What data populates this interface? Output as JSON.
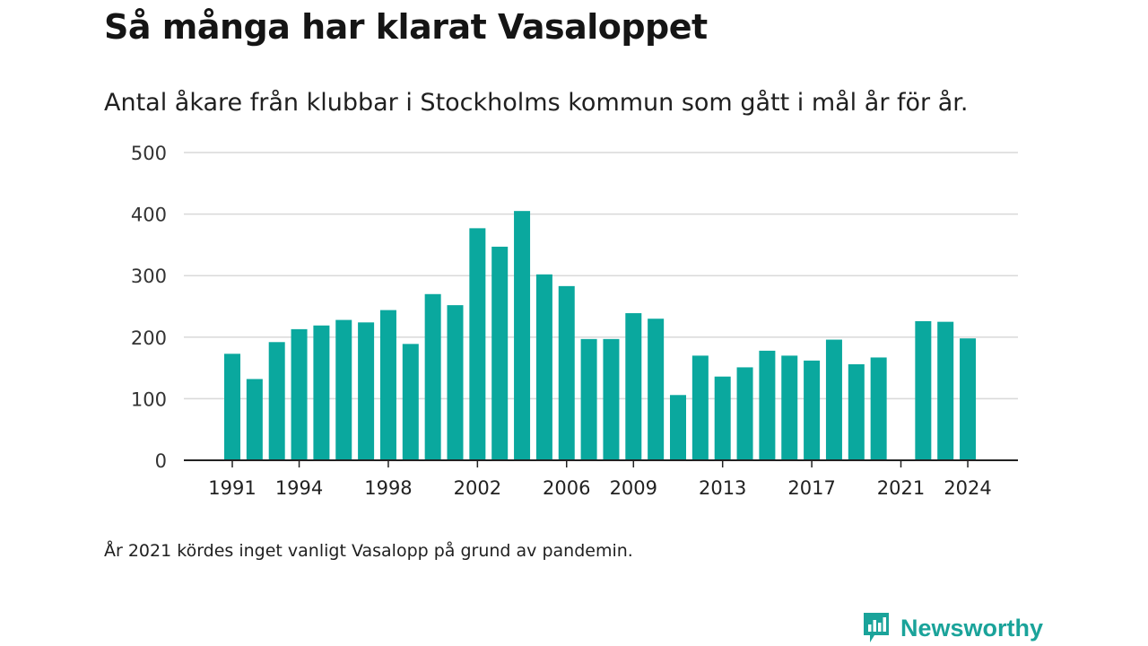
{
  "header": {
    "title": "Så många har klarat Vasaloppet",
    "subtitle": "Antal åkare från klubbar i Stockholms kommun som gått i mål år för år."
  },
  "footer": {
    "note": "År 2021 kördes inget vanligt Vasalopp på grund av pandemin.",
    "brand": "Newsworthy"
  },
  "colors": {
    "bar": "#0aa89e",
    "grid": "#d9d9d9",
    "axis": "#222222",
    "brand": "#1aa39a"
  },
  "chart_data": {
    "type": "bar",
    "categories": [
      "1991",
      "1992",
      "1993",
      "1994",
      "1995",
      "1996",
      "1997",
      "1998",
      "1999",
      "2000",
      "2001",
      "2002",
      "2003",
      "2004",
      "2005",
      "2006",
      "2007",
      "2008",
      "2009",
      "2010",
      "2011",
      "2012",
      "2013",
      "2014",
      "2015",
      "2016",
      "2017",
      "2018",
      "2019",
      "2020",
      "2021",
      "2022",
      "2023",
      "2024"
    ],
    "values": [
      173,
      132,
      192,
      213,
      219,
      228,
      224,
      244,
      189,
      270,
      252,
      377,
      347,
      405,
      302,
      283,
      197,
      197,
      239,
      230,
      106,
      170,
      136,
      151,
      178,
      170,
      162,
      196,
      156,
      167,
      null,
      226,
      225,
      198
    ],
    "x_tick_labels": [
      "1991",
      "1994",
      "1998",
      "2002",
      "2006",
      "2009",
      "2013",
      "2017",
      "2021",
      "2024"
    ],
    "y_ticks": [
      0,
      100,
      200,
      300,
      400,
      500
    ],
    "ylim": [
      0,
      500
    ],
    "grid": true,
    "legend": "none",
    "xlabel": "",
    "ylabel": ""
  }
}
